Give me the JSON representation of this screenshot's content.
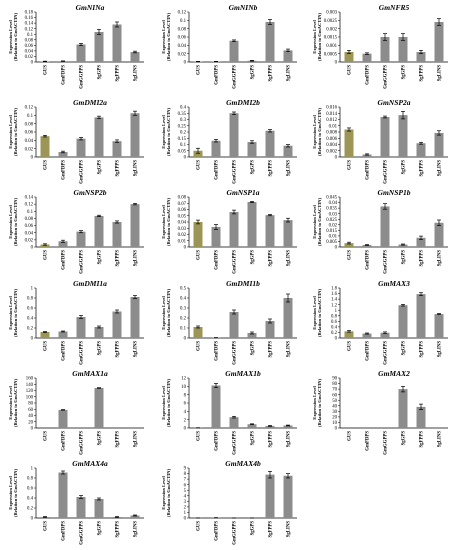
{
  "figure": {
    "ylabel_line1": "Expression Level",
    "ylabel_line2": "(Relation to GmACTIN)",
    "categories": [
      "GUS",
      "GmFDPS",
      "GmGGPPS",
      "SgGPS",
      "SgFPPS",
      "SgLINS"
    ],
    "colors": {
      "control_bar": "#9c9656",
      "bar": "#8c8c8c",
      "axis": "#000000",
      "error_bar": "#000000"
    }
  },
  "chart_data": [
    {
      "type": "bar",
      "title": "GmNINa",
      "ylim": [
        0,
        0.18
      ],
      "yticks": [
        "0",
        "0.02",
        "0.04",
        "0.06",
        "0.08",
        "0.1",
        "0.12",
        "0.14",
        "0.16",
        "0.18"
      ],
      "values": [
        0.002,
        0.003,
        0.063,
        0.108,
        0.135,
        0.036
      ],
      "errors": [
        0.001,
        0.001,
        0.004,
        0.009,
        0.009,
        0.003
      ]
    },
    {
      "type": "bar",
      "title": "GmNINb",
      "ylim": [
        0,
        0.12
      ],
      "yticks": [
        "0",
        "0.02",
        "0.04",
        "0.06",
        "0.08",
        "0.1",
        "0.12"
      ],
      "values": [
        0.001,
        0.001,
        0.051,
        0.003,
        0.096,
        0.028
      ],
      "errors": [
        0.0005,
        0.0005,
        0.002,
        0.001,
        0.006,
        0.003
      ]
    },
    {
      "type": "bar",
      "title": "GmNFR5",
      "ylim": [
        0,
        0.003
      ],
      "yticks": [
        "0",
        "0.0005",
        "0.001",
        "0.0015",
        "0.002",
        "0.0025",
        "0.003"
      ],
      "values": [
        0.0006,
        0.0005,
        0.0015,
        0.0015,
        0.0006,
        0.0024
      ],
      "errors": [
        0.0001,
        5e-05,
        0.0002,
        0.0002,
        0.0001,
        0.0002
      ]
    },
    {
      "type": "bar",
      "title": "GmDMI2a",
      "ylim": [
        0,
        0.12
      ],
      "yticks": [
        "0",
        "0.02",
        "0.04",
        "0.06",
        "0.08",
        "0.1",
        "0.12"
      ],
      "values": [
        0.05,
        0.012,
        0.044,
        0.095,
        0.038,
        0.105
      ],
      "errors": [
        0.002,
        0.002,
        0.003,
        0.003,
        0.003,
        0.005
      ]
    },
    {
      "type": "bar",
      "title": "GmDMI2b",
      "ylim": [
        0,
        0.4
      ],
      "yticks": [
        "0",
        "0.05",
        "0.1",
        "0.15",
        "0.2",
        "0.25",
        "0.3",
        "0.35",
        "0.4"
      ],
      "values": [
        0.05,
        0.13,
        0.35,
        0.12,
        0.21,
        0.09
      ],
      "errors": [
        0.02,
        0.01,
        0.01,
        0.01,
        0.01,
        0.01
      ]
    },
    {
      "type": "bar",
      "title": "GmNSP2a",
      "ylim": [
        0,
        0.016
      ],
      "yticks": [
        "0",
        "0.002",
        "0.004",
        "0.006",
        "0.008",
        "0.01",
        "0.012",
        "0.014",
        "0.016"
      ],
      "values": [
        0.0088,
        0.0008,
        0.0128,
        0.0134,
        0.0044,
        0.0077
      ],
      "errors": [
        0.0005,
        0.0002,
        0.0003,
        0.0012,
        0.0003,
        0.0007
      ]
    },
    {
      "type": "bar",
      "title": "GmNSP2b",
      "ylim": [
        0,
        0.14
      ],
      "yticks": [
        "0",
        "0.02",
        "0.04",
        "0.06",
        "0.08",
        "0.1",
        "0.12",
        "0.14"
      ],
      "values": [
        0.007,
        0.016,
        0.043,
        0.087,
        0.07,
        0.12
      ],
      "errors": [
        0.002,
        0.003,
        0.003,
        0.002,
        0.003,
        0.002
      ]
    },
    {
      "type": "bar",
      "title": "GmNSP1a",
      "ylim": [
        0,
        0.08
      ],
      "yticks": [
        "0",
        "0.01",
        "0.02",
        "0.03",
        "0.04",
        "0.05",
        "0.06",
        "0.07",
        "0.08"
      ],
      "values": [
        0.04,
        0.032,
        0.056,
        0.072,
        0.051,
        0.043
      ],
      "errors": [
        0.003,
        0.004,
        0.003,
        0.001,
        0.001,
        0.003
      ]
    },
    {
      "type": "bar",
      "title": "GmNSP1b",
      "ylim": [
        0,
        0.045
      ],
      "yticks": [
        "0",
        "0.005",
        "0.01",
        "0.015",
        "0.02",
        "0.025",
        "0.03",
        "0.035",
        "0.04",
        "0.045"
      ],
      "values": [
        0.0035,
        0.0018,
        0.0365,
        0.0022,
        0.0083,
        0.0218
      ],
      "errors": [
        0.0008,
        0.0004,
        0.0025,
        0.0005,
        0.0015,
        0.0025
      ]
    },
    {
      "type": "bar",
      "title": "GmDMI1a",
      "ylim": [
        0,
        1
      ],
      "yticks": [
        "0",
        "0.2",
        "0.4",
        "0.6",
        "0.8",
        "1"
      ],
      "values": [
        0.12,
        0.13,
        0.42,
        0.22,
        0.53,
        0.82
      ],
      "errors": [
        0.01,
        0.01,
        0.03,
        0.02,
        0.03,
        0.03
      ]
    },
    {
      "type": "bar",
      "title": "GmDMI1b",
      "ylim": [
        0,
        0.5
      ],
      "yticks": [
        "0",
        "0.1",
        "0.2",
        "0.3",
        "0.4",
        "0.5"
      ],
      "values": [
        0.11,
        0.003,
        0.26,
        0.05,
        0.17,
        0.4
      ],
      "errors": [
        0.01,
        0.001,
        0.02,
        0.01,
        0.02,
        0.04
      ]
    },
    {
      "type": "bar",
      "title": "GmMAX3",
      "ylim": [
        0,
        1.8
      ],
      "yticks": [
        "0",
        "0.2",
        "0.4",
        "0.6",
        "0.8",
        "1",
        "1.2",
        "1.4",
        "1.6",
        "1.8"
      ],
      "values": [
        0.24,
        0.16,
        0.19,
        1.18,
        1.58,
        0.86
      ],
      "errors": [
        0.03,
        0.02,
        0.03,
        0.03,
        0.05,
        0.02
      ]
    },
    {
      "type": "bar",
      "title": "GmMAX1a",
      "ylim": [
        0,
        160
      ],
      "yticks": [
        "0",
        "20",
        "40",
        "60",
        "80",
        "100",
        "120",
        "140",
        "160"
      ],
      "values": [
        0,
        58,
        0,
        128,
        0,
        0
      ],
      "errors": [
        0,
        1,
        0,
        1,
        0,
        0
      ]
    },
    {
      "type": "bar",
      "title": "GmMAX1b",
      "ylim": [
        0,
        12
      ],
      "yticks": [
        "0",
        "2",
        "4",
        "6",
        "8",
        "10",
        "12"
      ],
      "values": [
        0.05,
        10.2,
        2.6,
        0.9,
        0.5,
        0.6
      ],
      "errors": [
        0.02,
        0.5,
        0.2,
        0.1,
        0.1,
        0.1
      ]
    },
    {
      "type": "bar",
      "title": "GmMAX2",
      "ylim": [
        0,
        90
      ],
      "yticks": [
        "0",
        "10",
        "20",
        "30",
        "40",
        "50",
        "60",
        "70",
        "80",
        "90"
      ],
      "values": [
        0,
        0,
        0,
        70,
        38,
        0
      ],
      "errors": [
        0,
        0,
        0,
        5,
        5,
        0
      ]
    },
    {
      "type": "bar",
      "title": "GmMAX4a",
      "ylim": [
        0,
        1
      ],
      "yticks": [
        "0",
        "0.2",
        "0.4",
        "0.6",
        "0.8",
        "1"
      ],
      "values": [
        0.02,
        0.91,
        0.42,
        0.38,
        0.02,
        0.05
      ],
      "errors": [
        0.01,
        0.03,
        0.03,
        0.02,
        0.01,
        0.01
      ]
    },
    {
      "type": "bar",
      "title": "GmMAX4b",
      "ylim": [
        0,
        9
      ],
      "yticks": [
        "0",
        "1",
        "2",
        "3",
        "4",
        "5",
        "6",
        "7",
        "8",
        "9"
      ],
      "values": [
        0.02,
        0.05,
        0.01,
        0.01,
        7.8,
        7.6
      ],
      "errors": [
        0.01,
        0.02,
        0.005,
        0.005,
        0.6,
        0.4
      ]
    }
  ]
}
